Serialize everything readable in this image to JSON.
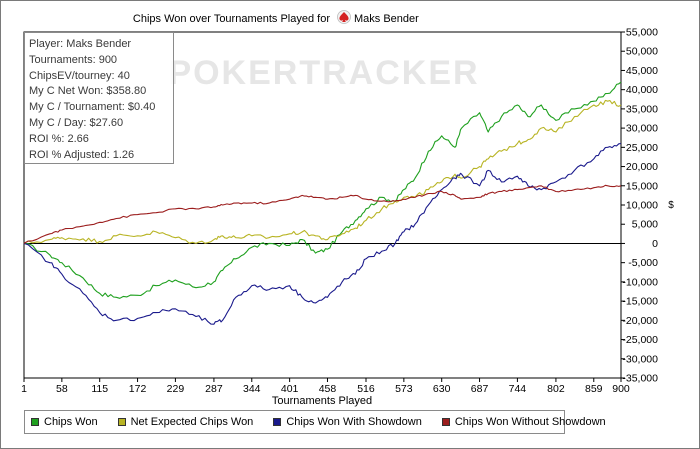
{
  "chart_data": {
    "type": "line",
    "title_prefix": "Chips Won over Tournaments Played for",
    "player_name": "Maks Bender",
    "watermark": "POKERTRACKER",
    "xlabel": "Tournaments Played",
    "ylabel": "$",
    "xlim": [
      1,
      900
    ],
    "ylim": [
      -35000,
      55000
    ],
    "x_ticks": [
      "1",
      "58",
      "115",
      "172",
      "229",
      "287",
      "344",
      "401",
      "458",
      "516",
      "573",
      "630",
      "687",
      "744",
      "802",
      "859",
      "900"
    ],
    "x_tick_values": [
      1,
      58,
      115,
      172,
      229,
      287,
      344,
      401,
      458,
      516,
      573,
      630,
      687,
      744,
      802,
      859,
      900
    ],
    "y_ticks": [
      "-35,000",
      "-30,000",
      "-25,000",
      "-20,000",
      "-15,000",
      "-10,000",
      "-5,000",
      "0",
      "5,000",
      "10,000",
      "15,000",
      "20,000",
      "25,000",
      "30,000",
      "35,000",
      "40,000",
      "45,000",
      "50,000",
      "55,000"
    ],
    "y_tick_values": [
      -35000,
      -30000,
      -25000,
      -20000,
      -15000,
      -10000,
      -5000,
      0,
      5000,
      10000,
      15000,
      20000,
      25000,
      30000,
      35000,
      40000,
      45000,
      50000,
      55000
    ],
    "grid": false,
    "legend_position": "bottom-left",
    "x": [
      1,
      40,
      58,
      90,
      115,
      140,
      172,
      200,
      229,
      260,
      287,
      300,
      320,
      344,
      370,
      401,
      420,
      440,
      458,
      480,
      500,
      516,
      540,
      560,
      573,
      590,
      610,
      630,
      650,
      660,
      687,
      700,
      720,
      744,
      760,
      780,
      802,
      830,
      859,
      880,
      900
    ],
    "series": [
      {
        "name": "Chips Won",
        "color": "#1fa01f",
        "values": [
          0,
          -3000,
          -5000,
          -9000,
          -13000,
          -14000,
          -13500,
          -11000,
          -9500,
          -11500,
          -10000,
          -7000,
          -4000,
          -1000,
          0,
          -500,
          1000,
          -2500,
          -1500,
          3000,
          6000,
          9000,
          12000,
          11000,
          14000,
          17000,
          24000,
          28000,
          25000,
          30000,
          34000,
          29000,
          33000,
          36000,
          33000,
          36000,
          32000,
          35000,
          37000,
          39000,
          42000
        ]
      },
      {
        "name": "Net Expected Chips Won",
        "color": "#b8b424",
        "values": [
          0,
          1000,
          1500,
          1200,
          500,
          2000,
          2000,
          3000,
          1500,
          0,
          1000,
          2000,
          1500,
          2000,
          1500,
          2500,
          3000,
          2000,
          1000,
          2500,
          4000,
          6000,
          9000,
          11000,
          12000,
          12000,
          14000,
          16000,
          18000,
          17000,
          20000,
          22000,
          24000,
          26000,
          27000,
          30000,
          29000,
          33000,
          36000,
          37000,
          36000
        ]
      },
      {
        "name": "Chips Won With Showdown",
        "color": "#1a1a8c",
        "values": [
          0,
          -5000,
          -8000,
          -13000,
          -18000,
          -20000,
          -19500,
          -18000,
          -17000,
          -19000,
          -21000,
          -20000,
          -14000,
          -11000,
          -12000,
          -11000,
          -14000,
          -15500,
          -14000,
          -10000,
          -8000,
          -4000,
          -2000,
          0,
          3000,
          5000,
          10000,
          14000,
          17000,
          18000,
          15000,
          19000,
          16000,
          17500,
          15000,
          14000,
          16000,
          19000,
          22000,
          25000,
          26000
        ]
      },
      {
        "name": "Chips Won Without Showdown",
        "color": "#9c1e1e",
        "values": [
          0,
          2500,
          3500,
          4500,
          5500,
          6500,
          7500,
          8000,
          9000,
          9000,
          9500,
          10000,
          10500,
          10500,
          10500,
          11500,
          12500,
          12000,
          11500,
          12000,
          12500,
          11500,
          11000,
          11000,
          11500,
          12000,
          13000,
          13500,
          12500,
          11500,
          12000,
          13000,
          13500,
          14000,
          14500,
          15000,
          13500,
          14000,
          14500,
          15000,
          15000
        ]
      }
    ]
  },
  "stats": [
    "Player: Maks Bender",
    "Tournaments: 900",
    "ChipsEV/tourney: 40",
    "My C Net Won: $358.80",
    "My C / Tournament: $0.40",
    "My C / Day: $27.60",
    "ROI %: 2.66",
    "ROI % Adjusted: 1.26"
  ],
  "colors": {
    "zero_line": "#000000",
    "frame": "#7a7a7a",
    "axis": "#000000"
  },
  "icons": {
    "title_logo": "poker-tracker-spade-icon"
  }
}
